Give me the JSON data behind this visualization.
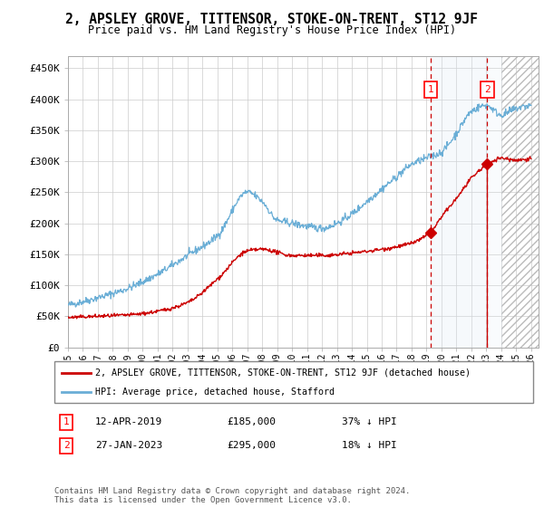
{
  "title": "2, APSLEY GROVE, TITTENSOR, STOKE-ON-TRENT, ST12 9JF",
  "subtitle": "Price paid vs. HM Land Registry's House Price Index (HPI)",
  "ylabel_ticks": [
    "£0",
    "£50K",
    "£100K",
    "£150K",
    "£200K",
    "£250K",
    "£300K",
    "£350K",
    "£400K",
    "£450K"
  ],
  "ytick_values": [
    0,
    50000,
    100000,
    150000,
    200000,
    250000,
    300000,
    350000,
    400000,
    450000
  ],
  "ylim": [
    0,
    470000
  ],
  "xlim_start": 1995.0,
  "xlim_end": 2026.5,
  "hpi_color": "#6aaed6",
  "price_color": "#cc0000",
  "marker_color": "#cc0000",
  "vline_color": "#cc0000",
  "shade_color": "#dce9f5",
  "marker1_x": 2019.27,
  "marker1_y": 185000,
  "marker2_x": 2023.07,
  "marker2_y": 295000,
  "legend_label1": "2, APSLEY GROVE, TITTENSOR, STOKE-ON-TRENT, ST12 9JF (detached house)",
  "legend_label2": "HPI: Average price, detached house, Stafford",
  "copyright_text": "Contains HM Land Registry data © Crown copyright and database right 2024.\nThis data is licensed under the Open Government Licence v3.0.",
  "xtick_years": [
    1995,
    1996,
    1997,
    1998,
    1999,
    2000,
    2001,
    2002,
    2003,
    2004,
    2005,
    2006,
    2007,
    2008,
    2009,
    2010,
    2011,
    2012,
    2013,
    2014,
    2015,
    2016,
    2017,
    2018,
    2019,
    2020,
    2021,
    2022,
    2023,
    2024,
    2025,
    2026
  ],
  "hpi_anchors_x": [
    1995,
    1997,
    1999,
    2001,
    2003,
    2005,
    2007,
    2008,
    2009,
    2010,
    2011,
    2012,
    2013,
    2014,
    2015,
    2016,
    2017,
    2018,
    2019,
    2020,
    2021,
    2022,
    2023,
    2024,
    2025,
    2026
  ],
  "hpi_anchors_y": [
    68000,
    80000,
    95000,
    118000,
    148000,
    180000,
    250000,
    235000,
    205000,
    200000,
    195000,
    192000,
    200000,
    215000,
    235000,
    255000,
    275000,
    295000,
    305000,
    315000,
    345000,
    380000,
    390000,
    375000,
    385000,
    390000
  ],
  "price_anchors_x": [
    1995,
    1997,
    1999,
    2001,
    2003,
    2005,
    2007,
    2008,
    2010,
    2012,
    2014,
    2016,
    2017,
    2018,
    2019.27,
    2020,
    2021,
    2022,
    2023.07,
    2024,
    2025,
    2026
  ],
  "price_anchors_y": [
    48000,
    50000,
    52000,
    58000,
    72000,
    110000,
    155000,
    158000,
    148000,
    148000,
    152000,
    158000,
    162000,
    168000,
    185000,
    210000,
    240000,
    272000,
    295000,
    305000,
    302000,
    305000
  ]
}
